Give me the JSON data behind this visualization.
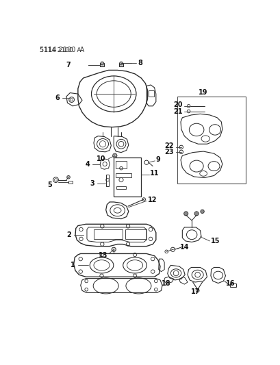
{
  "title": "5114 2100  A",
  "bg_color": "#ffffff",
  "line_color": "#2a2a2a",
  "fig_width": 4.1,
  "fig_height": 5.33,
  "dpi": 100,
  "label_fs": 6.5,
  "label_bold_fs": 7
}
